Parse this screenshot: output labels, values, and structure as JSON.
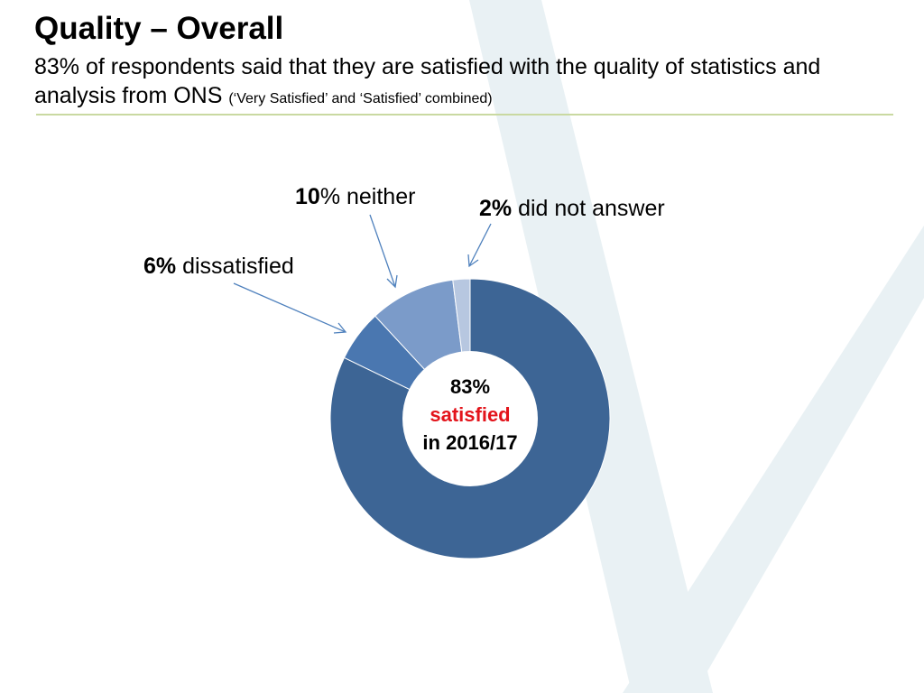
{
  "page": {
    "title": "Quality – Overall",
    "subtitle": "83% of respondents said that they are satisfied with the quality of statistics and analysis from ONS",
    "subtitle_note": "(‘Very Satisfied’ and ‘Satisfied’ combined)"
  },
  "center": {
    "pct": "83%",
    "word": "satisfied",
    "period": "in 2016/17"
  },
  "labels": {
    "neither": {
      "pct": "10",
      "text": "% neither"
    },
    "no_answer": {
      "pct": "2%",
      "text": " did not answer"
    },
    "dissatisfied": {
      "pct": "6%",
      "text": " dissatisfied"
    }
  },
  "colors": {
    "satisfied": "#3d6595",
    "dissatisfied": "#4a77b0",
    "neither": "#7b9bc9",
    "no_answer": "#b7c7e0",
    "center_highlight": "#e3141b",
    "arrow": "#4f81bd",
    "divider": "#c9d9a1",
    "watermark": "#e9f1f4"
  },
  "chart_data": {
    "type": "pie",
    "style": "donut",
    "slices": [
      {
        "label": "satisfied",
        "value": 83
      },
      {
        "label": "dissatisfied",
        "value": 6
      },
      {
        "label": "neither",
        "value": 10
      },
      {
        "label": "did not answer",
        "value": 2
      }
    ]
  }
}
